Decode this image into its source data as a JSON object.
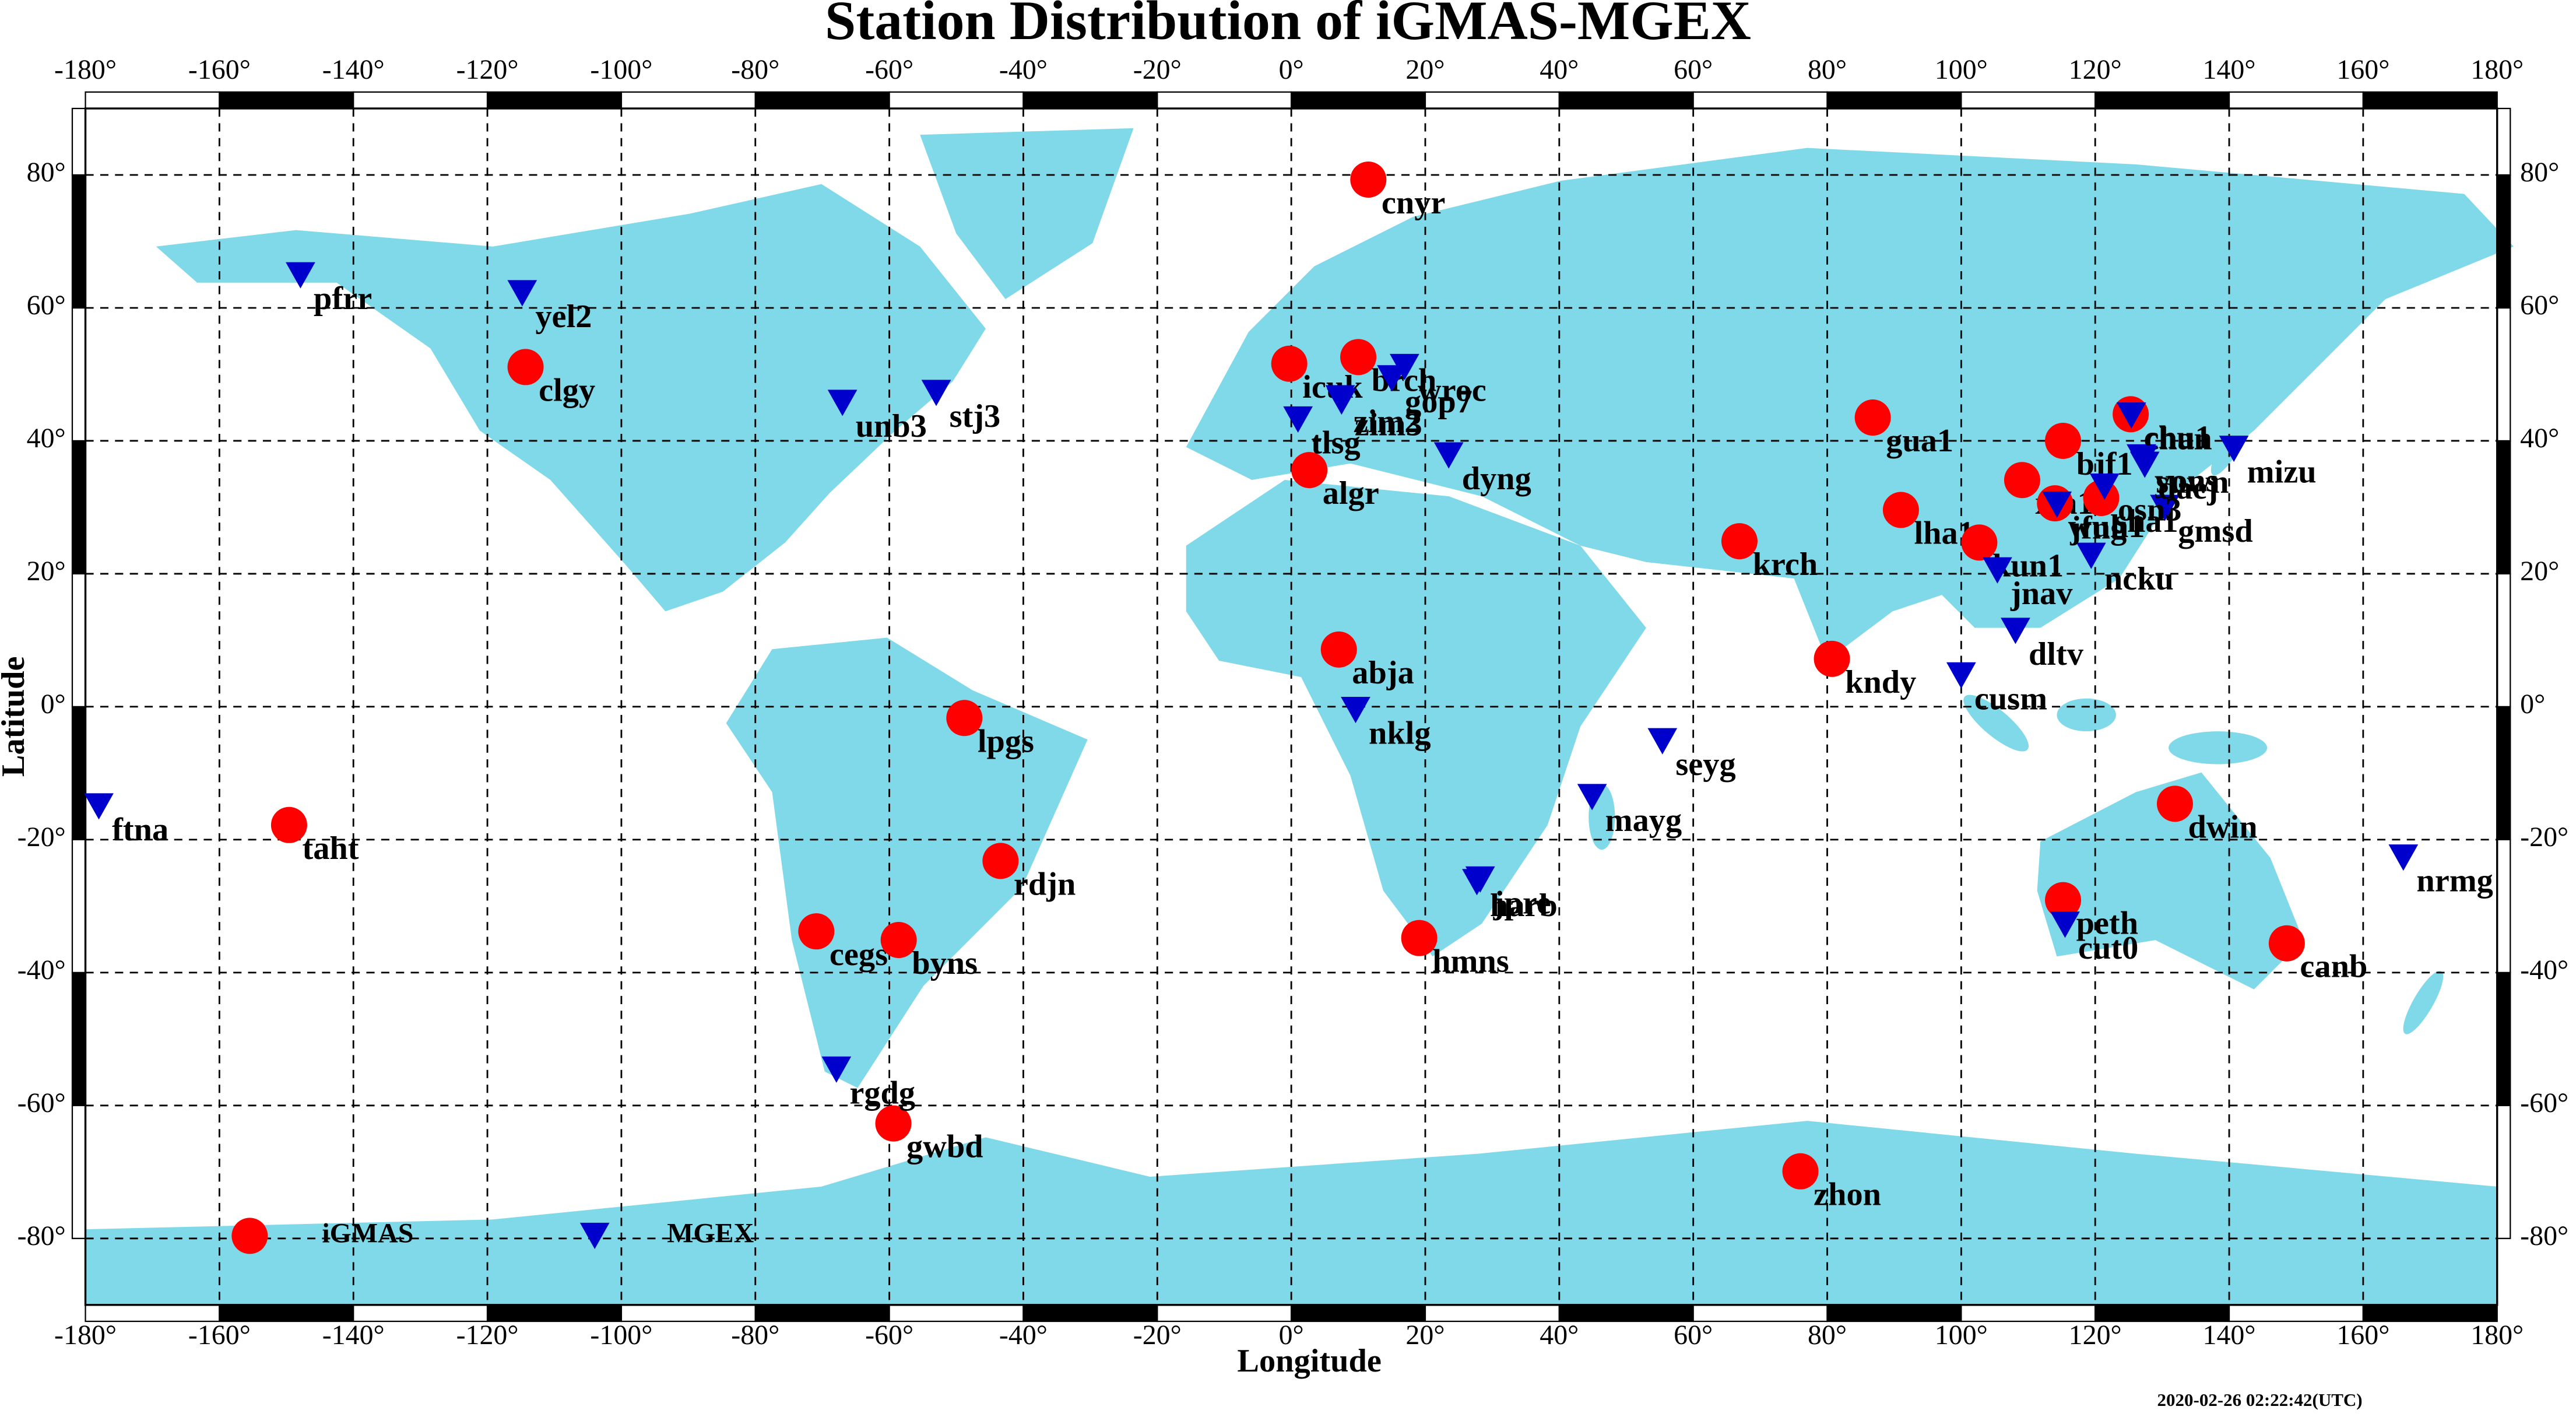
{
  "chart_data": {
    "type": "scatter",
    "title": "Station Distribution of iGMAS-MGEX",
    "x_label": "Longitude",
    "y_label": "Latitude",
    "footnote": "2020-02-26 02:22:42(UTC)",
    "xlim": [
      -180,
      180
    ],
    "ylim": [
      -90,
      90
    ],
    "grid": true,
    "xticks": [
      {
        "value": -180,
        "label": "-180°"
      },
      {
        "value": -160,
        "label": "-160°"
      },
      {
        "value": -140,
        "label": "-140°"
      },
      {
        "value": -120,
        "label": "-120°"
      },
      {
        "value": -100,
        "label": "-100°"
      },
      {
        "value": -80,
        "label": "-80°"
      },
      {
        "value": -60,
        "label": "-60°"
      },
      {
        "value": -40,
        "label": "-40°"
      },
      {
        "value": -20,
        "label": "-20°"
      },
      {
        "value": 0,
        "label": "0°"
      },
      {
        "value": 20,
        "label": "20°"
      },
      {
        "value": 40,
        "label": "40°"
      },
      {
        "value": 60,
        "label": "60°"
      },
      {
        "value": 80,
        "label": "80°"
      },
      {
        "value": 100,
        "label": "100°"
      },
      {
        "value": 120,
        "label": "120°"
      },
      {
        "value": 140,
        "label": "140°"
      },
      {
        "value": 160,
        "label": "160°"
      },
      {
        "value": 180,
        "label": "180°"
      }
    ],
    "yticks": [
      {
        "value": -80,
        "label": "-80°"
      },
      {
        "value": -60,
        "label": "-60°"
      },
      {
        "value": -40,
        "label": "-40°"
      },
      {
        "value": -20,
        "label": "-20°"
      },
      {
        "value": 0,
        "label": "0°"
      },
      {
        "value": 20,
        "label": "20°"
      },
      {
        "value": 40,
        "label": "40°"
      },
      {
        "value": 60,
        "label": "60°"
      },
      {
        "value": 80,
        "label": "80°"
      }
    ],
    "series": [
      {
        "name": "iGMAS",
        "color": "#ff0000",
        "marker": "circle",
        "labels": [
          "cnyr",
          "clgy",
          "icuk",
          "brch",
          "algr",
          "abja",
          "lpgs",
          "rdjn",
          "cegs",
          "byns",
          "gwbd",
          "taht",
          "hmns",
          "gua1",
          "lha1",
          "kun1",
          "krch",
          "kndy",
          "xia1",
          "bjf1",
          "wuh1",
          "sha1",
          "chu1",
          "dwin",
          "peth",
          "canb",
          "zhon"
        ],
        "x": [
          11.5,
          -114.3,
          -0.3,
          10,
          2.7,
          7.1,
          -48.8,
          -43.4,
          -70.9,
          -58.6,
          -59.4,
          -149.6,
          19.1,
          86.8,
          91,
          102.7,
          66.9,
          80.7,
          109.1,
          115.2,
          114,
          120.9,
          125.3,
          131.9,
          115.2,
          148.6,
          76
        ],
        "y": [
          79.3,
          51.1,
          51.6,
          52.6,
          35.6,
          8.6,
          -1.7,
          -23.2,
          -33.8,
          -35.1,
          -62.7,
          -17.8,
          -34.8,
          43.5,
          29.6,
          24.7,
          24.9,
          7.2,
          34.1,
          40,
          30.6,
          31.4,
          44,
          -14.6,
          -29.1,
          -35.6,
          -69.9
        ]
      },
      {
        "name": "MGEX",
        "color": "#0000cc",
        "marker": "triangle",
        "labels": [
          "pfrr",
          "yel2",
          "unb3",
          "stj3",
          "zim2",
          "wroc",
          "gop7",
          "tlsg",
          "zim3",
          "dyng",
          "nklg",
          "mayg",
          "seyg",
          "harb",
          "jpre",
          "rgdg",
          "ftna",
          "nrmg",
          "cut0",
          "jnav",
          "dltv",
          "cusm",
          "ncku",
          "gmsd",
          "daej",
          "mizu",
          "yons",
          "chan",
          "suwn",
          "jfng",
          "osn3"
        ],
        "x": [
          -147.9,
          -114.8,
          -67,
          -53,
          7.3,
          16.9,
          15,
          1,
          7.5,
          23.5,
          9.6,
          44.9,
          55.4,
          27.7,
          28.2,
          -67.9,
          -178,
          166,
          115.5,
          105.4,
          108.1,
          100,
          119.4,
          130.4,
          127.4,
          140.7,
          126.9,
          125.4,
          127.1,
          114.3,
          121.4
        ],
        "y": [
          64.9,
          62.2,
          45.7,
          47.2,
          46.4,
          51.1,
          49.4,
          43.2,
          45.9,
          37.8,
          -0.5,
          -13.6,
          -5.2,
          -26.4,
          -26,
          -54.6,
          -15,
          -22.7,
          -32.8,
          20.5,
          11.4,
          4.7,
          22.7,
          29.9,
          36.4,
          38.8,
          37.5,
          43.8,
          37.3,
          30.4,
          33.1
        ]
      }
    ]
  }
}
